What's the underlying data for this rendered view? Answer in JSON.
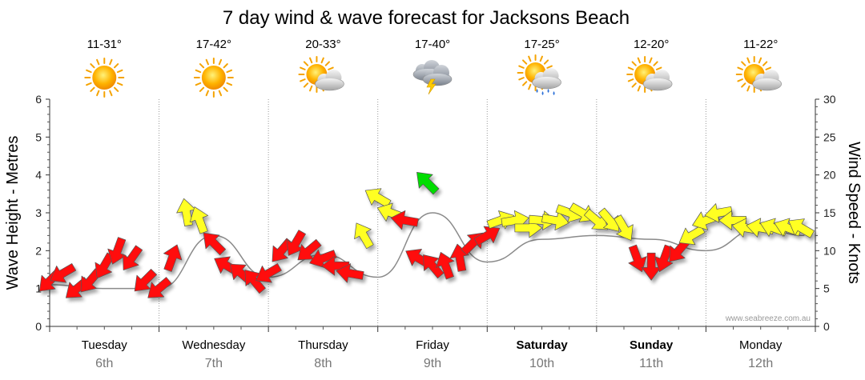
{
  "chart_data": {
    "type": "line",
    "title": "7 day wind & wave forecast for Jacksons Beach",
    "y_left_label": "Wave Height - Metres",
    "y_right_label": "Wind Speed - Knots",
    "y_left_range": [
      0,
      6
    ],
    "y_left_ticks": [
      "0",
      "1",
      "2",
      "3",
      "4",
      "5",
      "6"
    ],
    "y_right_range": [
      0,
      30
    ],
    "y_right_ticks": [
      "0",
      "5",
      "10",
      "15",
      "20",
      "25",
      "30"
    ],
    "grid": "dotted vertical day separators",
    "credit": "www.seabreeze.com.au",
    "days": [
      {
        "name": "Tuesday",
        "date": "6th",
        "temp": "11-31°",
        "weather": "sunny",
        "bold": false
      },
      {
        "name": "Wednesday",
        "date": "7th",
        "temp": "17-42°",
        "weather": "sunny",
        "bold": false
      },
      {
        "name": "Thursday",
        "date": "8th",
        "temp": "20-33°",
        "weather": "partly-cloudy",
        "bold": false
      },
      {
        "name": "Friday",
        "date": "9th",
        "temp": "17-40°",
        "weather": "storm",
        "bold": false
      },
      {
        "name": "Saturday",
        "date": "10th",
        "temp": "17-25°",
        "weather": "showers",
        "bold": true
      },
      {
        "name": "Sunday",
        "date": "11th",
        "temp": "12-20°",
        "weather": "partly-cloudy",
        "bold": true
      },
      {
        "name": "Monday",
        "date": "12th",
        "temp": "11-22°",
        "weather": "partly-cloudy",
        "bold": false
      }
    ],
    "wind_colors": {
      "light": "#00dd00",
      "moderate": "#ffff22",
      "strong": "#ff1010"
    },
    "wind_series": {
      "name": "Wind",
      "x_day": [
        0.0,
        0.12,
        0.25,
        0.37,
        0.5,
        0.62,
        0.75,
        0.87,
        1.0,
        1.12,
        1.25,
        1.37,
        1.5,
        1.62,
        1.75,
        1.87,
        2.0,
        2.12,
        2.25,
        2.37,
        2.5,
        2.62,
        2.75,
        2.87,
        3.0,
        3.12,
        3.25,
        3.37,
        3.5,
        3.62,
        3.75,
        3.87,
        4.0,
        4.12,
        4.25,
        4.37,
        4.5,
        4.62,
        4.75,
        4.87,
        5.0,
        5.12,
        5.25,
        5.37,
        5.5,
        5.62,
        5.75,
        5.87,
        6.0,
        6.12,
        6.25,
        6.37,
        6.5,
        6.62,
        6.75,
        6.87
      ],
      "knots": [
        6,
        7,
        5,
        6,
        8,
        10,
        9,
        6,
        5,
        9,
        15,
        14,
        11,
        8,
        7,
        6,
        7,
        10,
        11,
        10,
        9,
        8,
        7,
        12,
        17,
        15,
        14,
        9,
        8,
        8,
        9,
        11,
        12,
        14,
        14,
        13,
        14,
        14,
        15,
        15,
        14,
        14,
        13,
        9,
        8,
        9,
        10,
        12,
        14,
        15,
        14,
        13,
        13,
        13,
        13,
        13
      ],
      "direction_deg": [
        225,
        240,
        230,
        220,
        210,
        200,
        215,
        225,
        230,
        20,
        350,
        340,
        315,
        300,
        310,
        320,
        240,
        220,
        210,
        230,
        250,
        270,
        280,
        330,
        300,
        290,
        280,
        300,
        320,
        340,
        350,
        45,
        60,
        70,
        80,
        90,
        95,
        100,
        110,
        120,
        130,
        140,
        150,
        160,
        180,
        200,
        220,
        240,
        250,
        260,
        270,
        280,
        280,
        290,
        290,
        300
      ],
      "band": [
        "strong",
        "strong",
        "strong",
        "strong",
        "strong",
        "strong",
        "strong",
        "strong",
        "strong",
        "strong",
        "moderate",
        "moderate",
        "strong",
        "strong",
        "strong",
        "strong",
        "strong",
        "strong",
        "strong",
        "strong",
        "strong",
        "strong",
        "strong",
        "moderate",
        "moderate",
        "moderate",
        "strong",
        "strong",
        "strong",
        "strong",
        "strong",
        "strong",
        "strong",
        "moderate",
        "moderate",
        "moderate",
        "moderate",
        "moderate",
        "moderate",
        "moderate",
        "moderate",
        "moderate",
        "moderate",
        "strong",
        "strong",
        "strong",
        "strong",
        "moderate",
        "moderate",
        "moderate",
        "moderate",
        "moderate",
        "moderate",
        "moderate",
        "moderate",
        "moderate"
      ]
    },
    "wave_series": {
      "name": "Wave",
      "x_day": [
        0.0,
        0.5,
        1.0,
        1.5,
        2.0,
        2.5,
        3.0,
        3.5,
        4.0,
        4.5,
        5.0,
        5.5,
        6.0,
        6.5,
        6.9
      ],
      "metres": [
        1.1,
        1.0,
        1.0,
        2.4,
        1.3,
        1.9,
        1.3,
        3.0,
        1.7,
        2.3,
        2.4,
        2.3,
        2.0,
        2.6,
        2.4
      ]
    },
    "special_arrow": {
      "day": 3.45,
      "knots": 19,
      "direction_deg": 315,
      "band": "light"
    }
  }
}
